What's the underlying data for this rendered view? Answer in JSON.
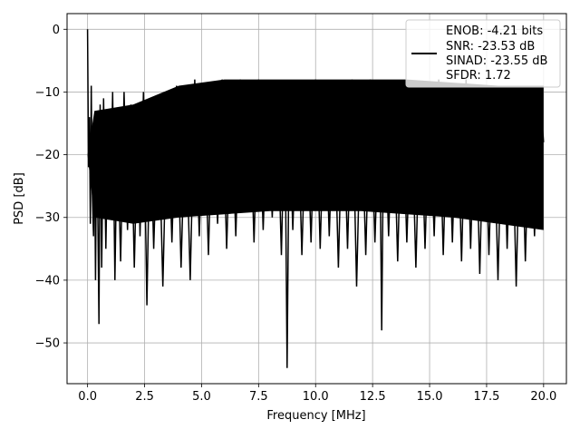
{
  "chart_data": {
    "type": "line",
    "title": "",
    "xlabel": "Frequency [MHz]",
    "ylabel": "PSD [dB]",
    "xlim": [
      -0.9,
      21.0
    ],
    "ylim": [
      -56.5,
      2.5
    ],
    "xticks": [
      0.0,
      2.5,
      5.0,
      7.5,
      10.0,
      12.5,
      15.0,
      17.5,
      20.0
    ],
    "xtick_labels": [
      "0.0",
      "2.5",
      "5.0",
      "7.5",
      "10.0",
      "12.5",
      "15.0",
      "17.5",
      "20.0"
    ],
    "yticks": [
      0,
      -10,
      -20,
      -30,
      -40,
      -50
    ],
    "ytick_labels": [
      "0",
      "−10",
      "−20",
      "−30",
      "−40",
      "−50"
    ],
    "grid": true,
    "legend": {
      "placement": "upper right",
      "entries": [
        "ENOB: -4.21 bits",
        "SNR: -23.53 dB",
        "SINAD: -23.55 dB",
        "SFDR: 1.72"
      ]
    },
    "series": [
      {
        "color": "#000000",
        "x": [
          0.0,
          0.04,
          0.08,
          0.12,
          0.16,
          0.2,
          0.26,
          0.3,
          0.35,
          0.4,
          0.45,
          0.5,
          0.55,
          0.62,
          0.7,
          0.8,
          0.9,
          1.0,
          1.1,
          1.2,
          1.3,
          1.45,
          1.6,
          1.75,
          1.9,
          2.05,
          2.2,
          2.3,
          2.45,
          2.6,
          2.75,
          2.9,
          3.1,
          3.3,
          3.5,
          3.7,
          3.9,
          4.1,
          4.3,
          4.5,
          4.7,
          4.9,
          5.1,
          5.3,
          5.5,
          5.7,
          5.9,
          6.1,
          6.3,
          6.5,
          6.7,
          6.9,
          7.1,
          7.3,
          7.5,
          7.7,
          7.9,
          8.1,
          8.3,
          8.5,
          8.65,
          8.75,
          8.85,
          9.0,
          9.2,
          9.4,
          9.6,
          9.8,
          10.0,
          10.2,
          10.4,
          10.6,
          10.8,
          11.0,
          11.2,
          11.4,
          11.6,
          11.8,
          12.0,
          12.2,
          12.4,
          12.6,
          12.8,
          12.9,
          13.0,
          13.2,
          13.4,
          13.6,
          13.8,
          14.0,
          14.2,
          14.4,
          14.6,
          14.8,
          15.0,
          15.2,
          15.4,
          15.6,
          15.8,
          16.0,
          16.2,
          16.4,
          16.6,
          16.8,
          17.0,
          17.2,
          17.4,
          17.6,
          17.8,
          18.0,
          18.2,
          18.4,
          18.6,
          18.8,
          19.0,
          19.2,
          19.4,
          19.6,
          19.8,
          20.0
        ],
        "y": [
          0.0,
          -22.0,
          -14.0,
          -31.0,
          -9.0,
          -25.0,
          -33.0,
          -15.0,
          -40.0,
          -13.0,
          -30.0,
          -47.0,
          -12.0,
          -38.0,
          -11.0,
          -35.0,
          -14.0,
          -30.0,
          -10.0,
          -40.0,
          -15.0,
          -37.0,
          -10.0,
          -32.0,
          -12.0,
          -38.0,
          -14.0,
          -33.0,
          -10.0,
          -44.0,
          -13.0,
          -35.0,
          -11.0,
          -41.0,
          -10.0,
          -34.0,
          -9.0,
          -38.0,
          -12.0,
          -40.0,
          -8.0,
          -33.0,
          -10.0,
          -36.0,
          -9.0,
          -31.0,
          -8.0,
          -35.0,
          -10.0,
          -33.0,
          -8.0,
          -29.0,
          -9.0,
          -34.0,
          -8.0,
          -32.0,
          -10.0,
          -30.0,
          -9.0,
          -36.0,
          -11.0,
          -54.0,
          -13.0,
          -32.0,
          -9.0,
          -36.0,
          -10.0,
          -34.0,
          -8.0,
          -35.0,
          -9.0,
          -33.0,
          -10.0,
          -38.0,
          -9.0,
          -35.0,
          -8.0,
          -41.0,
          -10.0,
          -36.0,
          -8.0,
          -34.0,
          -11.0,
          -48.0,
          -9.0,
          -33.0,
          -10.0,
          -37.0,
          -9.0,
          -34.0,
          -11.0,
          -38.0,
          -9.0,
          -35.0,
          -10.0,
          -33.0,
          -8.0,
          -36.0,
          -10.0,
          -34.0,
          -9.0,
          -37.0,
          -8.0,
          -35.0,
          -10.0,
          -39.0,
          -9.0,
          -36.0,
          -11.0,
          -40.0,
          -9.0,
          -35.0,
          -10.0,
          -41.0,
          -9.0,
          -37.0,
          -10.0,
          -33.0,
          -9.0,
          -18.0
        ]
      }
    ]
  }
}
